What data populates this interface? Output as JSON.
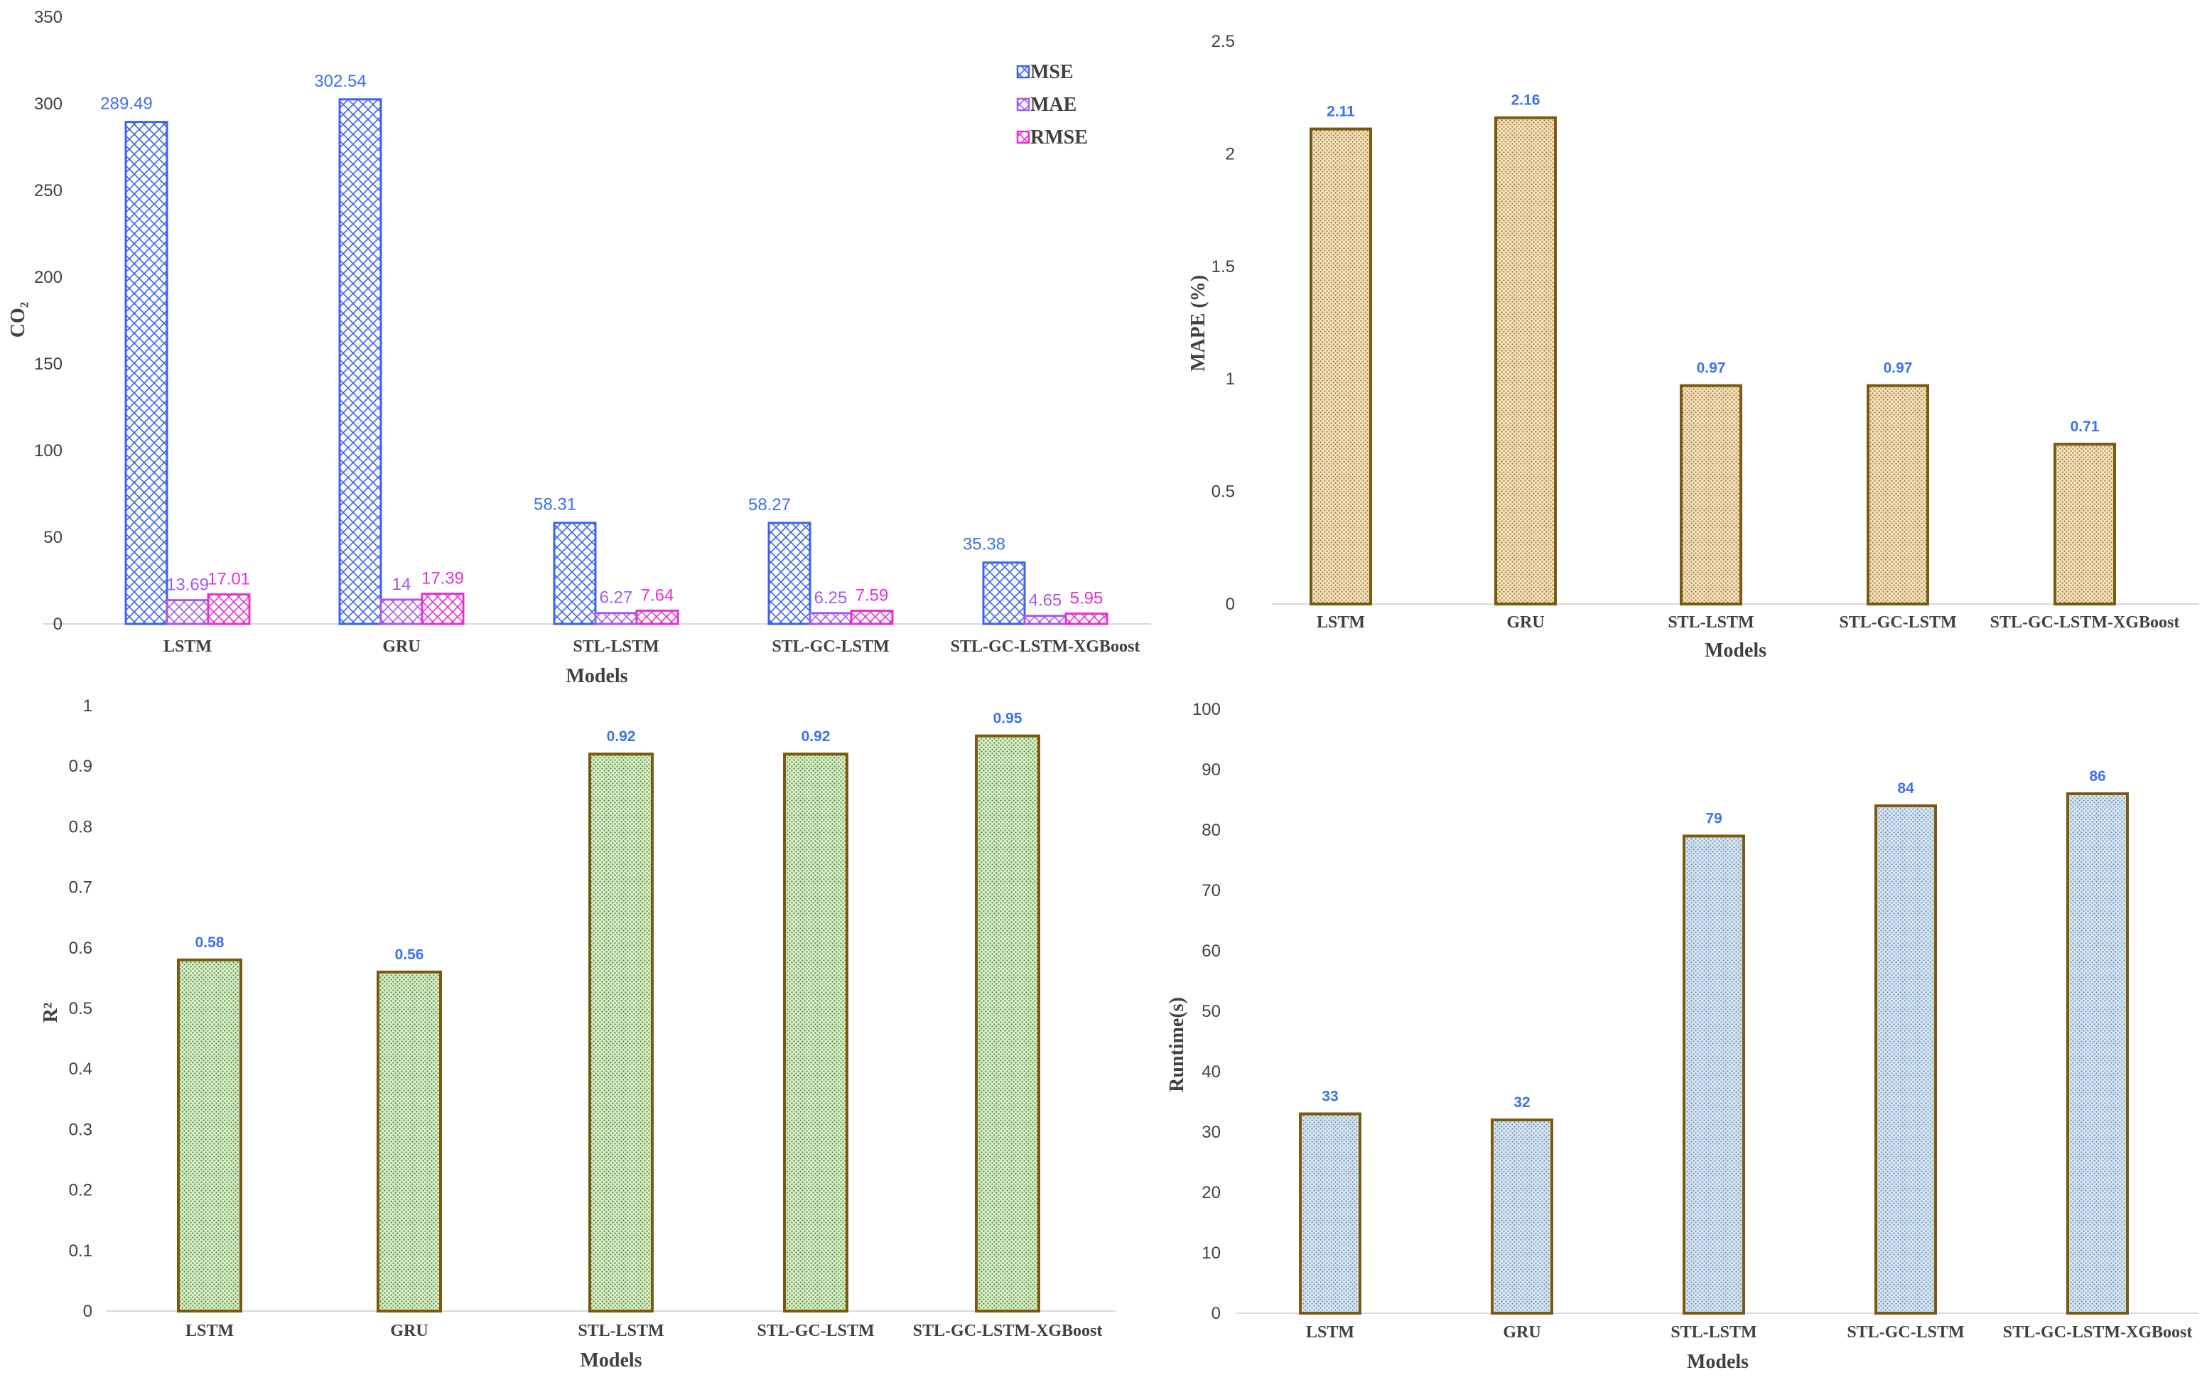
{
  "colors": {
    "mse": "#3b63f0",
    "mae": "#a45af0",
    "rmse": "#ea2fd2",
    "label_blue": "#3e72ea",
    "olive": "#7a5a0e",
    "mape_fill": "#f3e1be",
    "r2_fill": "#d8ecc8",
    "runtime_fill": "#cfe1ee",
    "axis": "#d9d9d9"
  },
  "chart_data": [
    {
      "id": "error",
      "type": "bar",
      "title": "",
      "xlabel": "Models",
      "ylabel": "CO₂",
      "ylim": [
        0,
        350
      ],
      "yticks": [
        0,
        50,
        100,
        150,
        200,
        250,
        300,
        350
      ],
      "categories": [
        "LSTM",
        "GRU",
        "STL-LSTM",
        "STL-GC-LSTM",
        "STL-GC-LSTM-XGBoost"
      ],
      "series": [
        {
          "name": "MSE",
          "values": [
            289.49,
            302.54,
            58.31,
            58.27,
            35.38
          ],
          "labels": [
            "289.49",
            "302.54",
            "58.31",
            "58.27",
            "35.38"
          ]
        },
        {
          "name": "MAE",
          "values": [
            13.69,
            14,
            6.27,
            6.25,
            4.65
          ],
          "labels": [
            "13.69",
            "14",
            "6.27",
            "6.25",
            "4.65"
          ]
        },
        {
          "name": "RMSE",
          "values": [
            17.01,
            17.39,
            7.64,
            7.59,
            5.95
          ],
          "labels": [
            "17.01",
            "17.39",
            "7.64",
            "7.59",
            "5.95"
          ]
        }
      ],
      "legend": "top-right"
    },
    {
      "id": "mape",
      "type": "bar",
      "title": "",
      "xlabel": "Models",
      "ylabel": "MAPE (%)",
      "ylim": [
        0,
        2.5
      ],
      "yticks": [
        0,
        0.5,
        1,
        1.5,
        2,
        2.5
      ],
      "ytick_labels": [
        "0",
        "0.5",
        "1",
        "1.5",
        "2",
        "2.5"
      ],
      "categories": [
        "LSTM",
        "GRU",
        "STL-LSTM",
        "STL-GC-LSTM",
        "STL-GC-LSTM-XGBoost"
      ],
      "values": [
        2.11,
        2.16,
        0.97,
        0.97,
        0.71
      ],
      "labels": [
        "2.11",
        "2.16",
        "0.97",
        "0.97",
        "0.71"
      ]
    },
    {
      "id": "r2",
      "type": "bar",
      "title": "",
      "xlabel": "Models",
      "ylabel": "R²",
      "ylim": [
        0,
        1
      ],
      "yticks": [
        0,
        0.1,
        0.2,
        0.3,
        0.4,
        0.5,
        0.6,
        0.7,
        0.8,
        0.9,
        1
      ],
      "ytick_labels": [
        "0",
        "0.1",
        "0.2",
        "0.3",
        "0.4",
        "0.5",
        "0.6",
        "0.7",
        "0.8",
        "0.9",
        "1"
      ],
      "categories": [
        "LSTM",
        "GRU",
        "STL-LSTM",
        "STL-GC-LSTM",
        "STL-GC-LSTM-XGBoost"
      ],
      "values": [
        0.58,
        0.56,
        0.92,
        0.92,
        0.95
      ],
      "labels": [
        "0.58",
        "0.56",
        "0.92",
        "0.92",
        "0.95"
      ]
    },
    {
      "id": "runtime",
      "type": "bar",
      "title": "",
      "xlabel": "Models",
      "ylabel": "Runtime(s)",
      "ylim": [
        0,
        100
      ],
      "yticks": [
        0,
        10,
        20,
        30,
        40,
        50,
        60,
        70,
        80,
        90,
        100
      ],
      "ytick_labels": [
        "0",
        "10",
        "20",
        "30",
        "40",
        "50",
        "60",
        "70",
        "80",
        "90",
        "100"
      ],
      "categories": [
        "LSTM",
        "GRU",
        "STL-LSTM",
        "STL-GC-LSTM",
        "STL-GC-LSTM-XGBoost"
      ],
      "values": [
        33,
        32,
        79,
        84,
        86
      ],
      "labels": [
        "33",
        "32",
        "79",
        "84",
        "86"
      ]
    }
  ]
}
